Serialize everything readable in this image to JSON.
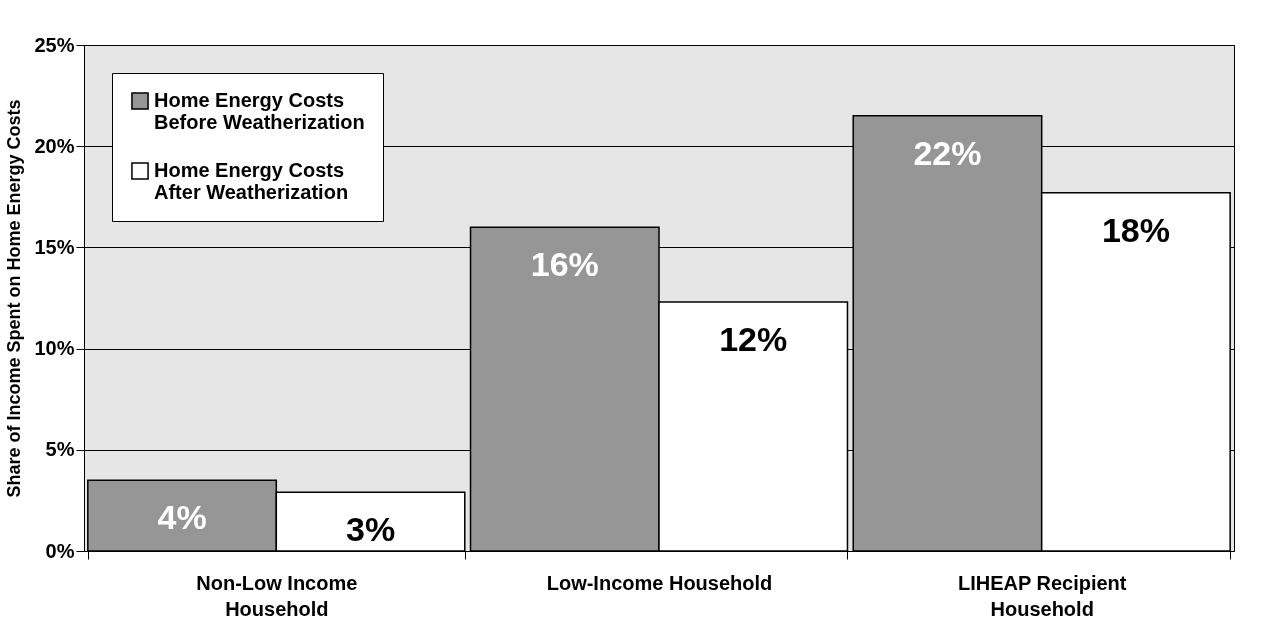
{
  "chart_data": {
    "type": "bar",
    "ylabel": "Share of Income Spent on Home Energy Costs",
    "categories": [
      "Non-Low Income\nHousehold",
      "Low-Income Household",
      "LIHEAP Recipient\nHousehold"
    ],
    "series": [
      {
        "name": "Home Energy Costs\nBefore Weatherization",
        "color": "#969696",
        "values": [
          3.5,
          16,
          21.5
        ],
        "value_labels": [
          "4%",
          "16%",
          "22%"
        ]
      },
      {
        "name": "Home Energy Costs\nAfter Weatherization",
        "color": "#ffffff",
        "values": [
          2.9,
          12.3,
          17.7
        ],
        "value_labels": [
          "3%",
          "12%",
          "18%"
        ]
      }
    ],
    "ylim": [
      0,
      25
    ],
    "yticks": [
      {
        "value": 0,
        "label": "0%"
      },
      {
        "value": 5,
        "label": "5%"
      },
      {
        "value": 10,
        "label": "10%"
      },
      {
        "value": 15,
        "label": "15%"
      },
      {
        "value": 20,
        "label": "20%"
      },
      {
        "value": 25,
        "label": "25%"
      }
    ],
    "grid": "y",
    "legend": "top left"
  }
}
